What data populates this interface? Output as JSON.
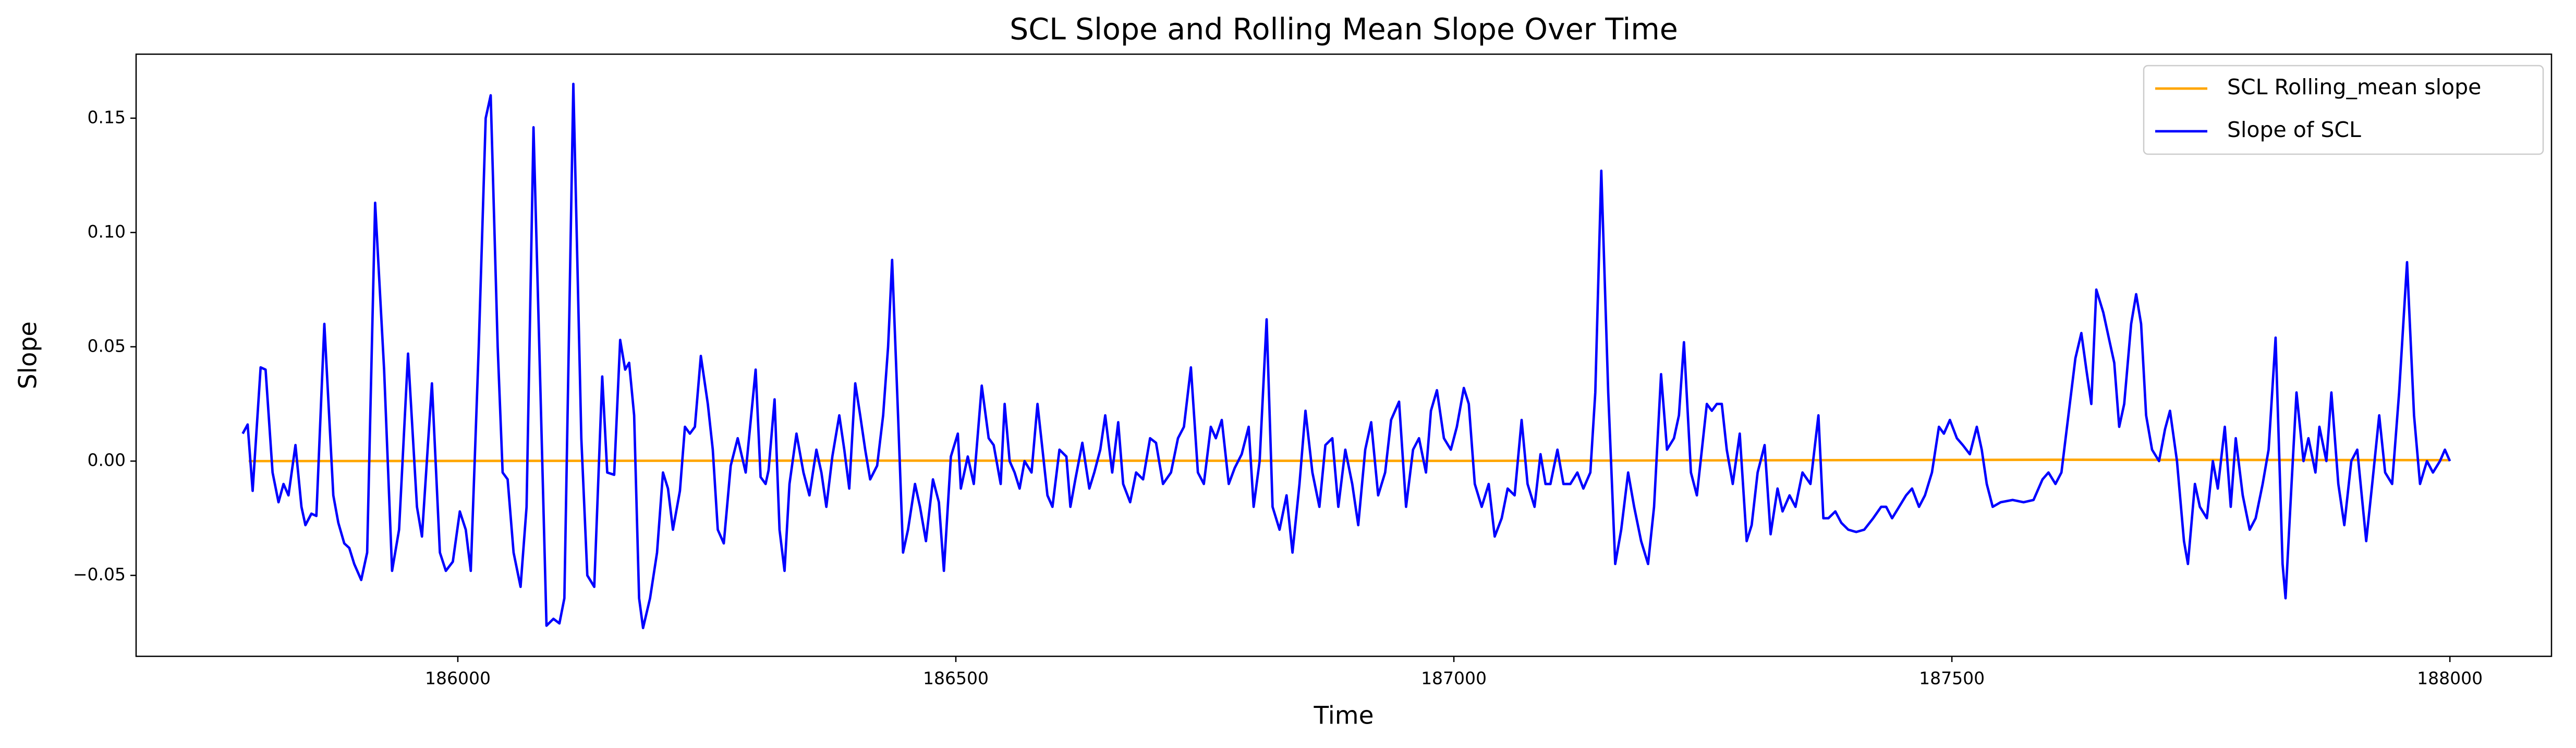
{
  "chart_data": {
    "type": "line",
    "title": "SCL Slope and Rolling Mean Slope Over Time",
    "x_label": "Time",
    "y_label": "Slope",
    "xlim": [
      185677,
      188102
    ],
    "ylim": [
      -0.0854,
      0.178
    ],
    "xticks": [
      186000,
      186500,
      187000,
      187500,
      188000
    ],
    "yticks": [
      {
        "value": -0.05,
        "label": "−0.05"
      },
      {
        "value": 0,
        "label": "0.00"
      },
      0.05,
      {
        "value": 0.1,
        "label": "0.10"
      },
      0.15
    ],
    "legend": "upper right",
    "series": [
      {
        "name": "SCL Rolling_mean slope",
        "color": "#ffa500",
        "x": [
          185790,
          186400,
          187000,
          187600,
          188000
        ],
        "values": [
          0.0,
          0.0002,
          0.0001,
          0.0006,
          0.0004
        ]
      },
      {
        "name": "Slope of SCL",
        "color": "#0000ff",
        "x": [
          185784,
          185789,
          185794,
          185802,
          185807,
          185814,
          185820,
          185825,
          185830,
          185837,
          185843,
          185847,
          185853,
          185858,
          185866,
          185875,
          185880,
          185886,
          185891,
          185896,
          185903,
          185909,
          185917,
          185926,
          185934,
          185941,
          185950,
          185959,
          185964,
          185974,
          185982,
          185988,
          185995,
          186002,
          186008,
          186013,
          186021,
          186028,
          186033,
          186040,
          186045,
          186050,
          186056,
          186063,
          186069,
          186076,
          186083,
          186089,
          186096,
          186102,
          186107,
          186116,
          186124,
          186130,
          186137,
          186145,
          186150,
          186157,
          186163,
          186168,
          186172,
          186177,
          186182,
          186186,
          186193,
          186200,
          186206,
          186211,
          186216,
          186223,
          186228,
          186233,
          186238,
          186244,
          186251,
          186256,
          186261,
          186267,
          186274,
          186281,
          186289,
          186299,
          186304,
          186309,
          186312,
          186318,
          186323,
          186328,
          186333,
          186340,
          186347,
          186353,
          186360,
          186365,
          186370,
          186376,
          186383,
          186388,
          186393,
          186399,
          186404,
          186409,
          186414,
          186421,
          186427,
          186432,
          186436,
          186442,
          186447,
          186452,
          186459,
          186464,
          186470,
          186477,
          186483,
          186488,
          186495,
          186502,
          186505,
          186512,
          186518,
          186526,
          186533,
          186538,
          186545,
          186549,
          186554,
          186559,
          186564,
          186569,
          186576,
          186582,
          186587,
          186592,
          186597,
          186604,
          186611,
          186615,
          186620,
          186627,
          186634,
          186639,
          186645,
          186650,
          186657,
          186663,
          186668,
          186675,
          186681,
          186688,
          186695,
          186701,
          186708,
          186716,
          186723,
          186729,
          186736,
          186743,
          186749,
          186756,
          186761,
          186767,
          186774,
          186780,
          186787,
          186794,
          186799,
          186805,
          186812,
          186818,
          186825,
          186832,
          186838,
          186845,
          186851,
          186858,
          186865,
          186871,
          186878,
          186884,
          186891,
          186898,
          186904,
          186911,
          186917,
          186924,
          186931,
          186937,
          186945,
          186952,
          186959,
          186965,
          186972,
          186977,
          186983,
          186990,
          186997,
          187003,
          187010,
          187015,
          187021,
          187028,
          187035,
          187041,
          187048,
          187054,
          187061,
          187068,
          187074,
          187081,
          187087,
          187092,
          187097,
          187104,
          187110,
          187117,
          187124,
          187130,
          187137,
          187142,
          187148,
          187155,
          187162,
          187168,
          187175,
          187181,
          187188,
          187195,
          187201,
          187208,
          187214,
          187221,
          187226,
          187231,
          187238,
          187244,
          187249,
          187254,
          187259,
          187264,
          187269,
          187274,
          187280,
          187287,
          187294,
          187299,
          187305,
          187312,
          187318,
          187325,
          187330,
          187337,
          187343,
          187350,
          187358,
          187366,
          187371,
          187376,
          187383,
          187389,
          187396,
          187404,
          187412,
          187421,
          187429,
          187434,
          187440,
          187447,
          187454,
          187460,
          187467,
          187473,
          187480,
          187487,
          187492,
          187498,
          187505,
          187511,
          187518,
          187525,
          187530,
          187535,
          187541,
          187549,
          187561,
          187572,
          187582,
          187591,
          187597,
          187604,
          187610,
          187617,
          187624,
          187630,
          187635,
          187640,
          187645,
          187652,
          187658,
          187663,
          187668,
          187673,
          187680,
          187685,
          187690,
          187695,
          187701,
          187708,
          187714,
          187719,
          187726,
          187733,
          187737,
          187744,
          187749,
          187756,
          187762,
          187767,
          187774,
          187780,
          187785,
          187792,
          187799,
          187805,
          187812,
          187818,
          187825,
          187832,
          187835,
          187841,
          187846,
          187853,
          187858,
          187865,
          187869,
          187876,
          187881,
          187888,
          187894,
          187901,
          187907,
          187916,
          187922,
          187929,
          187935,
          187942,
          187949,
          187957,
          187964,
          187970,
          187977,
          187983,
          187990,
          187995,
          188000
        ],
        "values": [
          0.012,
          0.016,
          -0.013,
          0.041,
          0.04,
          -0.005,
          -0.018,
          -0.01,
          -0.015,
          0.007,
          -0.02,
          -0.028,
          -0.023,
          -0.024,
          0.06,
          -0.015,
          -0.027,
          -0.036,
          -0.038,
          -0.045,
          -0.052,
          -0.04,
          0.113,
          0.04,
          -0.048,
          -0.03,
          0.047,
          -0.02,
          -0.033,
          0.034,
          -0.04,
          -0.048,
          -0.044,
          -0.022,
          -0.03,
          -0.048,
          0.05,
          0.15,
          0.16,
          0.05,
          -0.005,
          -0.008,
          -0.04,
          -0.055,
          -0.02,
          0.146,
          0.03,
          -0.072,
          -0.069,
          -0.071,
          -0.06,
          0.165,
          0.01,
          -0.05,
          -0.055,
          0.037,
          -0.005,
          -0.006,
          0.053,
          0.04,
          0.043,
          0.02,
          -0.06,
          -0.073,
          -0.06,
          -0.04,
          -0.005,
          -0.012,
          -0.03,
          -0.013,
          0.015,
          0.012,
          0.015,
          0.046,
          0.025,
          0.005,
          -0.03,
          -0.036,
          -0.002,
          0.01,
          -0.005,
          0.04,
          -0.007,
          -0.01,
          -0.004,
          0.027,
          -0.03,
          -0.048,
          -0.01,
          0.012,
          -0.005,
          -0.015,
          0.005,
          -0.005,
          -0.02,
          0.002,
          0.02,
          0.005,
          -0.012,
          0.034,
          0.02,
          0.005,
          -0.008,
          -0.002,
          0.02,
          0.05,
          0.088,
          0.02,
          -0.04,
          -0.03,
          -0.01,
          -0.02,
          -0.035,
          -0.008,
          -0.018,
          -0.048,
          0.002,
          0.012,
          -0.012,
          0.002,
          -0.01,
          0.033,
          0.01,
          0.007,
          -0.01,
          0.025,
          0.0,
          -0.005,
          -0.012,
          0.0,
          -0.005,
          0.025,
          0.005,
          -0.015,
          -0.02,
          0.005,
          0.002,
          -0.02,
          -0.008,
          0.008,
          -0.012,
          -0.005,
          0.005,
          0.02,
          -0.005,
          0.017,
          -0.01,
          -0.018,
          -0.005,
          -0.008,
          0.01,
          0.008,
          -0.01,
          -0.005,
          0.01,
          0.015,
          0.041,
          -0.005,
          -0.01,
          0.015,
          0.01,
          0.018,
          -0.01,
          -0.003,
          0.003,
          0.015,
          -0.02,
          0.0,
          0.062,
          -0.02,
          -0.03,
          -0.015,
          -0.04,
          -0.01,
          0.022,
          -0.005,
          -0.02,
          0.007,
          0.01,
          -0.02,
          0.005,
          -0.01,
          -0.028,
          0.005,
          0.017,
          -0.015,
          -0.005,
          0.018,
          0.026,
          -0.02,
          0.005,
          0.01,
          -0.005,
          0.022,
          0.031,
          0.01,
          0.005,
          0.015,
          0.032,
          0.025,
          -0.01,
          -0.02,
          -0.01,
          -0.033,
          -0.025,
          -0.012,
          -0.015,
          0.018,
          -0.01,
          -0.02,
          0.003,
          -0.01,
          -0.01,
          0.005,
          -0.01,
          -0.01,
          -0.005,
          -0.012,
          -0.005,
          0.03,
          0.127,
          0.03,
          -0.045,
          -0.03,
          -0.005,
          -0.02,
          -0.035,
          -0.045,
          -0.02,
          0.038,
          0.005,
          0.01,
          0.02,
          0.052,
          -0.005,
          -0.015,
          0.005,
          0.025,
          0.022,
          0.025,
          0.025,
          0.005,
          -0.01,
          0.012,
          -0.035,
          -0.028,
          -0.005,
          0.007,
          -0.032,
          -0.012,
          -0.022,
          -0.015,
          -0.02,
          -0.005,
          -0.01,
          0.02,
          -0.025,
          -0.025,
          -0.022,
          -0.027,
          -0.03,
          -0.031,
          -0.03,
          -0.025,
          -0.02,
          -0.02,
          -0.025,
          -0.02,
          -0.015,
          -0.012,
          -0.02,
          -0.015,
          -0.005,
          0.015,
          0.012,
          0.018,
          0.01,
          0.007,
          0.003,
          0.015,
          0.005,
          -0.01,
          -0.02,
          -0.018,
          -0.017,
          -0.018,
          -0.017,
          -0.008,
          -0.005,
          -0.01,
          -0.005,
          0.02,
          0.045,
          0.056,
          0.04,
          0.025,
          0.075,
          0.065,
          0.053,
          0.043,
          0.015,
          0.025,
          0.06,
          0.073,
          0.06,
          0.02,
          0.005,
          0.0,
          0.014,
          0.022,
          0.0,
          -0.035,
          -0.045,
          -0.01,
          -0.02,
          -0.025,
          0.0,
          -0.012,
          0.015,
          -0.02,
          0.01,
          -0.015,
          -0.03,
          -0.025,
          -0.01,
          0.005,
          0.054,
          -0.045,
          -0.06,
          -0.01,
          0.03,
          0.0,
          0.01,
          -0.005,
          0.015,
          0.0,
          0.03,
          -0.01,
          -0.028,
          0.0,
          0.005,
          -0.035,
          -0.01,
          0.02,
          -0.005,
          -0.01,
          0.03,
          0.087,
          0.02,
          -0.01,
          0.0,
          -0.005,
          0.0,
          0.005,
          0.0
        ]
      }
    ]
  }
}
